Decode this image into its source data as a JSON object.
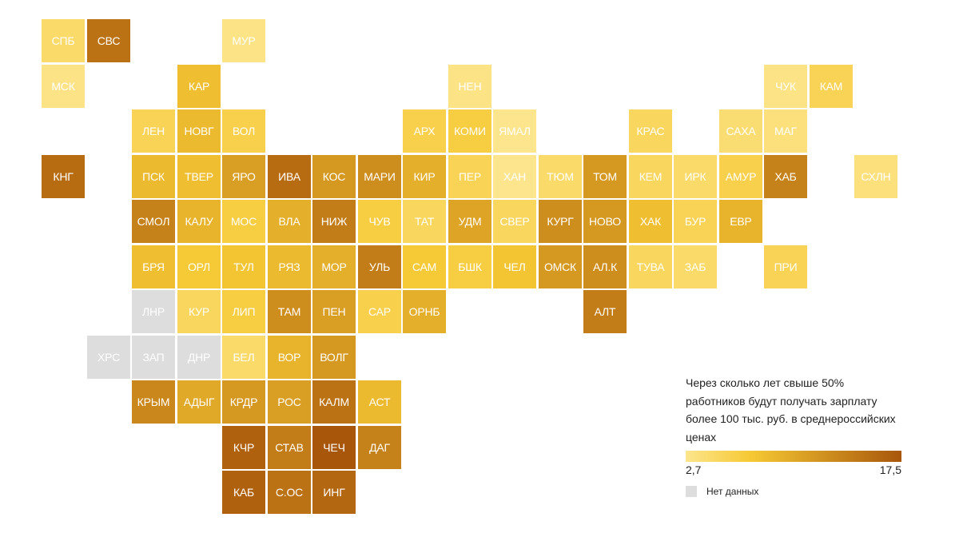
{
  "legend": {
    "title": "Через сколько лет свыше 50% работников будут получать зарплату более 100 тыс. руб. в среднероссийских ценах",
    "min": "2,7",
    "max": "17,5",
    "no_data_label": "Нет данных"
  },
  "colors": {
    "scale_low": "#FCE58C",
    "scale_mid": "#F6C934",
    "scale_high": "#A8560A",
    "no_data": "#DDDDDD"
  },
  "regions": [
    {
      "label": "СПБ",
      "col": 0,
      "row": 0,
      "value": 4.5
    },
    {
      "label": "СВС",
      "col": 1,
      "row": 0,
      "value": 15.0
    },
    {
      "label": "МУР",
      "col": 4,
      "row": 0,
      "value": 3.0
    },
    {
      "label": "МСК",
      "col": 0,
      "row": 1,
      "value": 3.0
    },
    {
      "label": "КАР",
      "col": 3,
      "row": 1,
      "value": 8.0
    },
    {
      "label": "НЕН",
      "col": 9,
      "row": 1,
      "value": 3.0
    },
    {
      "label": "ЧУК",
      "col": 16,
      "row": 1,
      "value": 3.0
    },
    {
      "label": "КАМ",
      "col": 17,
      "row": 1,
      "value": 5.5
    },
    {
      "label": "ЛЕН",
      "col": 2,
      "row": 2,
      "value": 5.5
    },
    {
      "label": "НОВГ",
      "col": 3,
      "row": 2,
      "value": 8.5
    },
    {
      "label": "ВОЛ",
      "col": 4,
      "row": 2,
      "value": 6.0
    },
    {
      "label": "АРХ",
      "col": 8,
      "row": 2,
      "value": 6.0
    },
    {
      "label": "КОМИ",
      "col": 9,
      "row": 2,
      "value": 6.5
    },
    {
      "label": "ЯМАЛ",
      "col": 10,
      "row": 2,
      "value": 2.7
    },
    {
      "label": "КРАС",
      "col": 13,
      "row": 2,
      "value": 5.0
    },
    {
      "label": "САХА",
      "col": 15,
      "row": 2,
      "value": 4.0
    },
    {
      "label": "МАГ",
      "col": 16,
      "row": 2,
      "value": 3.5
    },
    {
      "label": "КНГ",
      "col": 0,
      "row": 3,
      "value": 15.5
    },
    {
      "label": "ПСК",
      "col": 2,
      "row": 3,
      "value": 8.5
    },
    {
      "label": "ТВЕР",
      "col": 3,
      "row": 3,
      "value": 8.0
    },
    {
      "label": "ЯРО",
      "col": 4,
      "row": 3,
      "value": 11.0
    },
    {
      "label": "ИВА",
      "col": 5,
      "row": 3,
      "value": 15.5
    },
    {
      "label": "КОС",
      "col": 6,
      "row": 3,
      "value": 11.5
    },
    {
      "label": "МАРИ",
      "col": 7,
      "row": 3,
      "value": 12.5
    },
    {
      "label": "КИР",
      "col": 8,
      "row": 3,
      "value": 9.5
    },
    {
      "label": "ПЕР",
      "col": 9,
      "row": 3,
      "value": 5.5
    },
    {
      "label": "ХАН",
      "col": 10,
      "row": 3,
      "value": 2.7
    },
    {
      "label": "ТЮМ",
      "col": 11,
      "row": 3,
      "value": 4.5
    },
    {
      "label": "ТОМ",
      "col": 12,
      "row": 3,
      "value": 11.5
    },
    {
      "label": "КЕМ",
      "col": 13,
      "row": 3,
      "value": 5.0
    },
    {
      "label": "ИРК",
      "col": 14,
      "row": 3,
      "value": 4.5
    },
    {
      "label": "АМУР",
      "col": 15,
      "row": 3,
      "value": 6.0
    },
    {
      "label": "ХАБ",
      "col": 16,
      "row": 3,
      "value": 13.5
    },
    {
      "label": "СХЛН",
      "col": 18,
      "row": 3,
      "value": 3.5
    },
    {
      "label": "СМОЛ",
      "col": 2,
      "row": 4,
      "value": 13.5
    },
    {
      "label": "КАЛУ",
      "col": 3,
      "row": 4,
      "value": 9.0
    },
    {
      "label": "МОС",
      "col": 4,
      "row": 4,
      "value": 6.5
    },
    {
      "label": "ВЛА",
      "col": 5,
      "row": 4,
      "value": 9.5
    },
    {
      "label": "НИЖ",
      "col": 6,
      "row": 4,
      "value": 14.0
    },
    {
      "label": "ЧУВ",
      "col": 7,
      "row": 4,
      "value": 6.5
    },
    {
      "label": "ТАТ",
      "col": 8,
      "row": 4,
      "value": 5.0
    },
    {
      "label": "УДМ",
      "col": 9,
      "row": 4,
      "value": 10.5
    },
    {
      "label": "СВЕР",
      "col": 10,
      "row": 4,
      "value": 5.0
    },
    {
      "label": "КУРГ",
      "col": 11,
      "row": 4,
      "value": 12.5
    },
    {
      "label": "НОВО",
      "col": 12,
      "row": 4,
      "value": 11.5
    },
    {
      "label": "ХАК",
      "col": 13,
      "row": 4,
      "value": 8.0
    },
    {
      "label": "БУР",
      "col": 14,
      "row": 4,
      "value": 5.5
    },
    {
      "label": "ЕВР",
      "col": 15,
      "row": 4,
      "value": 9.0
    },
    {
      "label": "БРЯ",
      "col": 2,
      "row": 5,
      "value": 8.0
    },
    {
      "label": "ОРЛ",
      "col": 3,
      "row": 5,
      "value": 7.0
    },
    {
      "label": "ТУЛ",
      "col": 4,
      "row": 5,
      "value": 7.5
    },
    {
      "label": "РЯЗ",
      "col": 5,
      "row": 5,
      "value": 8.5
    },
    {
      "label": "МОР",
      "col": 6,
      "row": 5,
      "value": 9.5
    },
    {
      "label": "УЛЬ",
      "col": 7,
      "row": 5,
      "value": 14.0
    },
    {
      "label": "САМ",
      "col": 8,
      "row": 5,
      "value": 7.0
    },
    {
      "label": "БШК",
      "col": 9,
      "row": 5,
      "value": 6.5
    },
    {
      "label": "ЧЕЛ",
      "col": 10,
      "row": 5,
      "value": 7.5
    },
    {
      "label": "ОМСК",
      "col": 11,
      "row": 5,
      "value": 11.5
    },
    {
      "label": "АЛ.К",
      "col": 12,
      "row": 5,
      "value": 12.5
    },
    {
      "label": "ТУВА",
      "col": 13,
      "row": 5,
      "value": 5.0
    },
    {
      "label": "ЗАБ",
      "col": 14,
      "row": 5,
      "value": 4.5
    },
    {
      "label": "ПРИ",
      "col": 16,
      "row": 5,
      "value": 5.5
    },
    {
      "label": "ЛНР",
      "col": 2,
      "row": 6,
      "value": null
    },
    {
      "label": "КУР",
      "col": 3,
      "row": 6,
      "value": 5.0
    },
    {
      "label": "ЛИП",
      "col": 4,
      "row": 6,
      "value": 6.5
    },
    {
      "label": "ТАМ",
      "col": 5,
      "row": 6,
      "value": 12.5
    },
    {
      "label": "ПЕН",
      "col": 6,
      "row": 6,
      "value": 11.0
    },
    {
      "label": "САР",
      "col": 7,
      "row": 6,
      "value": 6.0
    },
    {
      "label": "ОРНБ",
      "col": 8,
      "row": 6,
      "value": 9.5
    },
    {
      "label": "АЛТ",
      "col": 12,
      "row": 6,
      "value": 14.0
    },
    {
      "label": "ХРС",
      "col": 1,
      "row": 7,
      "value": null
    },
    {
      "label": "ЗАП",
      "col": 2,
      "row": 7,
      "value": null
    },
    {
      "label": "ДНР",
      "col": 3,
      "row": 7,
      "value": null
    },
    {
      "label": "БЕЛ",
      "col": 4,
      "row": 7,
      "value": 4.5
    },
    {
      "label": "ВОР",
      "col": 5,
      "row": 7,
      "value": 9.0
    },
    {
      "label": "ВОЛГ",
      "col": 6,
      "row": 7,
      "value": 11.5
    },
    {
      "label": "КРЫМ",
      "col": 2,
      "row": 8,
      "value": 13.0
    },
    {
      "label": "АДЫГ",
      "col": 3,
      "row": 8,
      "value": 10.0
    },
    {
      "label": "КРДР",
      "col": 4,
      "row": 8,
      "value": 11.5
    },
    {
      "label": "РОС",
      "col": 5,
      "row": 8,
      "value": 11.0
    },
    {
      "label": "КАЛМ",
      "col": 6,
      "row": 8,
      "value": 15.0
    },
    {
      "label": "АСТ",
      "col": 7,
      "row": 8,
      "value": 8.5
    },
    {
      "label": "КЧР",
      "col": 4,
      "row": 9,
      "value": 16.5
    },
    {
      "label": "СТАВ",
      "col": 5,
      "row": 9,
      "value": 14.0
    },
    {
      "label": "ЧЕЧ",
      "col": 6,
      "row": 9,
      "value": 17.5
    },
    {
      "label": "ДАГ",
      "col": 7,
      "row": 9,
      "value": 13.5
    },
    {
      "label": "КАБ",
      "col": 4,
      "row": 10,
      "value": 16.5
    },
    {
      "label": "С.ОС",
      "col": 5,
      "row": 10,
      "value": 15.0
    },
    {
      "label": "ИНГ",
      "col": 6,
      "row": 10,
      "value": 16.0
    }
  ]
}
